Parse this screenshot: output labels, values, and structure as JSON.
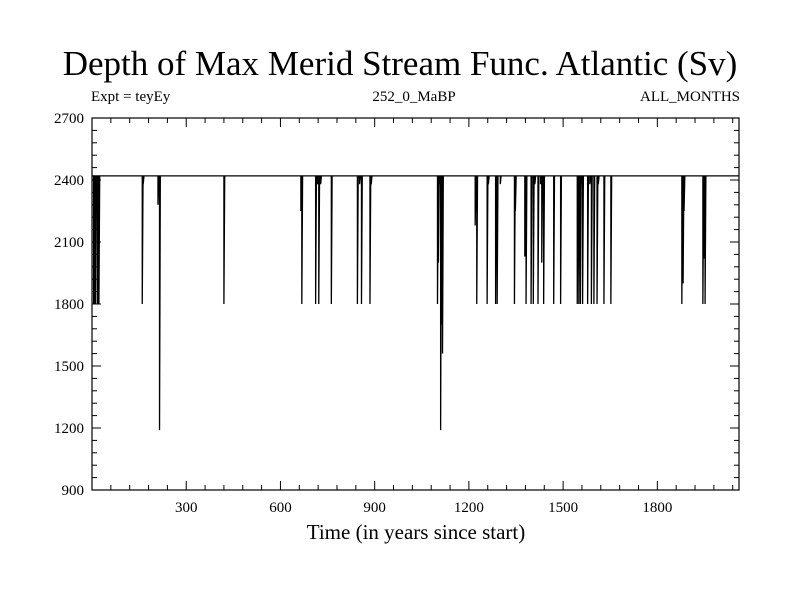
{
  "chart_data": {
    "type": "line",
    "title": "Depth of Max Merid Stream Func. Atlantic (Sv)",
    "subtitle_left": "Expt = teyEy",
    "subtitle_center": "252_0_MaBP",
    "subtitle_right": "ALL_MONTHS",
    "xlabel": "Time (in years since start)",
    "ylabel": "",
    "xlim": [
      0,
      2060
    ],
    "ylim": [
      900,
      2700
    ],
    "xticks": [
      300,
      600,
      900,
      1200,
      1500,
      1800
    ],
    "yticks": [
      900,
      1200,
      1500,
      1800,
      2100,
      2400,
      2700
    ],
    "baseline": 2420,
    "grid": false,
    "line_color": "#000000",
    "dips": [
      {
        "x": 5,
        "y": 1800
      },
      {
        "x": 8,
        "y": 1800
      },
      {
        "x": 12,
        "y": 1800
      },
      {
        "x": 18,
        "y": 1800
      },
      {
        "x": 22,
        "y": 1800
      },
      {
        "x": 160,
        "y": 1800
      },
      {
        "x": 163,
        "y": 2380
      },
      {
        "x": 210,
        "y": 2280
      },
      {
        "x": 215,
        "y": 1190
      },
      {
        "x": 420,
        "y": 1800
      },
      {
        "x": 665,
        "y": 2250
      },
      {
        "x": 668,
        "y": 1800
      },
      {
        "x": 712,
        "y": 1800
      },
      {
        "x": 718,
        "y": 2380
      },
      {
        "x": 722,
        "y": 1800
      },
      {
        "x": 728,
        "y": 2380
      },
      {
        "x": 762,
        "y": 1800
      },
      {
        "x": 845,
        "y": 1800
      },
      {
        "x": 852,
        "y": 2380
      },
      {
        "x": 858,
        "y": 1800
      },
      {
        "x": 885,
        "y": 1800
      },
      {
        "x": 889,
        "y": 2380
      },
      {
        "x": 1100,
        "y": 1800
      },
      {
        "x": 1103,
        "y": 2000
      },
      {
        "x": 1106,
        "y": 2380
      },
      {
        "x": 1110,
        "y": 1190
      },
      {
        "x": 1112,
        "y": 1700
      },
      {
        "x": 1116,
        "y": 1560
      },
      {
        "x": 1220,
        "y": 2180
      },
      {
        "x": 1225,
        "y": 1800
      },
      {
        "x": 1258,
        "y": 1800
      },
      {
        "x": 1262,
        "y": 2380
      },
      {
        "x": 1285,
        "y": 1800
      },
      {
        "x": 1290,
        "y": 1800
      },
      {
        "x": 1300,
        "y": 2380
      },
      {
        "x": 1345,
        "y": 1800
      },
      {
        "x": 1348,
        "y": 2250
      },
      {
        "x": 1378,
        "y": 2030
      },
      {
        "x": 1382,
        "y": 1800
      },
      {
        "x": 1398,
        "y": 1800
      },
      {
        "x": 1405,
        "y": 1800
      },
      {
        "x": 1410,
        "y": 2380
      },
      {
        "x": 1420,
        "y": 1800
      },
      {
        "x": 1428,
        "y": 2380
      },
      {
        "x": 1432,
        "y": 2000
      },
      {
        "x": 1438,
        "y": 1800
      },
      {
        "x": 1470,
        "y": 1800
      },
      {
        "x": 1492,
        "y": 1800
      },
      {
        "x": 1545,
        "y": 1800
      },
      {
        "x": 1550,
        "y": 1800
      },
      {
        "x": 1555,
        "y": 1800
      },
      {
        "x": 1558,
        "y": 2380
      },
      {
        "x": 1562,
        "y": 1800
      },
      {
        "x": 1578,
        "y": 1800
      },
      {
        "x": 1585,
        "y": 2380
      },
      {
        "x": 1590,
        "y": 1800
      },
      {
        "x": 1598,
        "y": 1800
      },
      {
        "x": 1608,
        "y": 1800
      },
      {
        "x": 1612,
        "y": 2380
      },
      {
        "x": 1630,
        "y": 1800
      },
      {
        "x": 1652,
        "y": 1800
      },
      {
        "x": 1878,
        "y": 1800
      },
      {
        "x": 1882,
        "y": 1900
      },
      {
        "x": 1885,
        "y": 2250
      },
      {
        "x": 1945,
        "y": 1800
      },
      {
        "x": 1948,
        "y": 2020
      },
      {
        "x": 1952,
        "y": 1800
      }
    ]
  }
}
